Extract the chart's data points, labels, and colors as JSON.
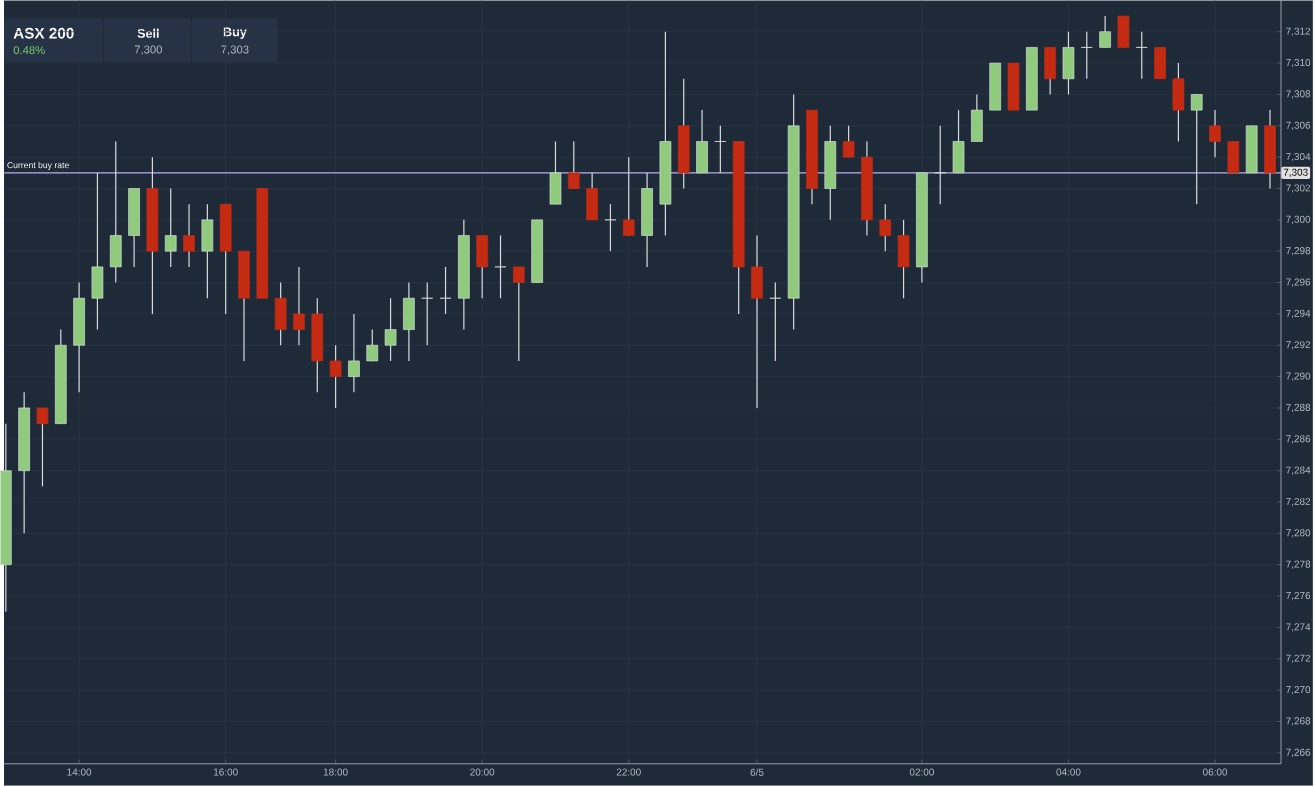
{
  "chart_data": {
    "type": "candlestick",
    "title": "ASX 200",
    "subtitle": "0.48%",
    "annotations": [
      "Sell",
      "7,300",
      "Buy",
      "7,303",
      {
        "text": "7,303",
        "y": 7303
      }
    ],
    "categories": [
      null,
      null,
      null,
      null,
      "14:00",
      null,
      null,
      null,
      null,
      null,
      null,
      null,
      "16:00",
      null,
      null,
      null,
      null,
      null,
      "18:00",
      null,
      null,
      null,
      null,
      null,
      null,
      null,
      "20:00",
      null,
      null,
      null,
      null,
      null,
      null,
      null,
      "22:00",
      null,
      null,
      null,
      null,
      null,
      null,
      "6/5",
      null,
      null,
      null,
      null,
      null,
      null,
      null,
      null,
      "02:00",
      null,
      null,
      null,
      null,
      null,
      null,
      null,
      "04:00",
      null,
      null,
      null,
      null,
      null,
      null,
      null,
      "06:00",
      null,
      null,
      null
    ],
    "ohlc": [
      [
        7278,
        7287,
        7275,
        7284
      ],
      [
        7284,
        7289,
        7280,
        7288
      ],
      [
        7288,
        7288,
        7283,
        7287
      ],
      [
        7287,
        7293,
        7287,
        7292
      ],
      [
        7292,
        7296,
        7289,
        7295
      ],
      [
        7295,
        7303,
        7293,
        7297
      ],
      [
        7297,
        7305,
        7296,
        7299
      ],
      [
        7299,
        7302,
        7297,
        7302
      ],
      [
        7302,
        7304,
        7294,
        7298
      ],
      [
        7298,
        7302,
        7297,
        7299
      ],
      [
        7299,
        7301,
        7297,
        7298
      ],
      [
        7298,
        7301,
        7295,
        7300
      ],
      [
        7301,
        7301,
        7294,
        7298
      ],
      [
        7298,
        7298,
        7291,
        7295
      ],
      [
        7302,
        7302,
        7295,
        7295
      ],
      [
        7295,
        7296,
        7292,
        7293
      ],
      [
        7294,
        7297,
        7292,
        7293
      ],
      [
        7294,
        7295,
        7289,
        7291
      ],
      [
        7291,
        7292,
        7288,
        7290
      ],
      [
        7290,
        7294,
        7289,
        7291
      ],
      [
        7291,
        7293,
        7291,
        7292
      ],
      [
        7292,
        7295,
        7291,
        7293
      ],
      [
        7293,
        7296,
        7291,
        7295
      ],
      [
        7295,
        7296,
        7292,
        7295
      ],
      [
        7295,
        7297,
        7294,
        7295
      ],
      [
        7295,
        7300,
        7293,
        7299
      ],
      [
        7299,
        7299,
        7295,
        7297
      ],
      [
        7297,
        7299,
        7295,
        7297
      ],
      [
        7297,
        7297,
        7291,
        7296
      ],
      [
        7296,
        7300,
        7296,
        7300
      ],
      [
        7301,
        7305,
        7301,
        7303
      ],
      [
        7303,
        7305,
        7302,
        7302
      ],
      [
        7302,
        7303,
        7300,
        7300
      ],
      [
        7300,
        7301,
        7298,
        7300
      ],
      [
        7300,
        7304,
        7299,
        7299
      ],
      [
        7299,
        7303,
        7297,
        7302
      ],
      [
        7301,
        7312,
        7299,
        7305
      ],
      [
        7306,
        7309,
        7302,
        7303
      ],
      [
        7303,
        7307,
        7303,
        7305
      ],
      [
        7305,
        7306,
        7303,
        7305
      ],
      [
        7305,
        7305,
        7294,
        7297
      ],
      [
        7297,
        7299,
        7288,
        7295
      ],
      [
        7295,
        7296,
        7291,
        7295
      ],
      [
        7295,
        7308,
        7293,
        7306
      ],
      [
        7307,
        7307,
        7301,
        7302
      ],
      [
        7302,
        7306,
        7300,
        7305
      ],
      [
        7305,
        7306,
        7304,
        7304
      ],
      [
        7304,
        7305,
        7299,
        7300
      ],
      [
        7300,
        7301,
        7298,
        7299
      ],
      [
        7299,
        7300,
        7295,
        7297
      ],
      [
        7297,
        7303,
        7296,
        7303
      ],
      [
        7303,
        7306,
        7301,
        7303
      ],
      [
        7303,
        7307,
        7303,
        7305
      ],
      [
        7305,
        7308,
        7305,
        7307
      ],
      [
        7307,
        7310,
        7307,
        7310
      ],
      [
        7310,
        7310,
        7307,
        7307
      ],
      [
        7307,
        7311,
        7307,
        7311
      ],
      [
        7311,
        7311,
        7308,
        7309
      ],
      [
        7309,
        7312,
        7308,
        7311
      ],
      [
        7311,
        7312,
        7309,
        7311
      ],
      [
        7311,
        7313,
        7311,
        7312
      ],
      [
        7313,
        7313,
        7311,
        7311
      ],
      [
        7311,
        7312,
        7309,
        7311
      ],
      [
        7311,
        7311,
        7309,
        7309
      ],
      [
        7309,
        7310,
        7305,
        7307
      ],
      [
        7307,
        7308,
        7301,
        7308
      ],
      [
        7306,
        7307,
        7304,
        7305
      ],
      [
        7305,
        7305,
        7303,
        7303
      ],
      [
        7303,
        7306,
        7303,
        7306
      ],
      [
        7306,
        7307,
        7302,
        7303
      ]
    ],
    "colors": [
      "#8fca7d",
      "#8fca7d",
      "#c42b12",
      "#8fca7d",
      "#8fca7d",
      "#8fca7d",
      "#8fca7d",
      "#8fca7d",
      "#c42b12",
      "#8fca7d",
      "#c42b12",
      "#8fca7d",
      "#c42b12",
      "#c42b12",
      "#c42b12",
      "#c42b12",
      "#c42b12",
      "#c42b12",
      "#c42b12",
      "#8fca7d",
      "#8fca7d",
      "#8fca7d",
      "#8fca7d",
      "#e0e0e0",
      "#e0e0e0",
      "#8fca7d",
      "#c42b12",
      "#e0e0e0",
      "#c42b12",
      "#8fca7d",
      "#8fca7d",
      "#c42b12",
      "#c42b12",
      "#e0e0e0",
      "#c42b12",
      "#8fca7d",
      "#8fca7d",
      "#c42b12",
      "#8fca7d",
      "#e0e0e0",
      "#c42b12",
      "#c42b12",
      "#e0e0e0",
      "#8fca7d",
      "#c42b12",
      "#8fca7d",
      "#c42b12",
      "#c42b12",
      "#c42b12",
      "#c42b12",
      "#8fca7d",
      "#e0e0e0",
      "#8fca7d",
      "#8fca7d",
      "#8fca7d",
      "#c42b12",
      "#8fca7d",
      "#c42b12",
      "#8fca7d",
      "#e0e0e0",
      "#8fca7d",
      "#c42b12",
      "#e0e0e0",
      "#c42b12",
      "#c42b12",
      "#8fca7d",
      "#c42b12",
      "#c42b12",
      "#8fca7d",
      "#c42b12"
    ],
    "ylim": [
      7265.3,
      7314
    ],
    "yticks": [
      {
        "value": 7266,
        "label": "7,266"
      },
      {
        "value": 7268,
        "label": "7,268"
      },
      {
        "value": 7270,
        "label": "7,270"
      },
      {
        "value": 7272,
        "label": "7,272"
      },
      {
        "value": 7274,
        "label": "7,274"
      },
      {
        "value": 7276,
        "label": "7,276"
      },
      {
        "value": 7278,
        "label": "7,278"
      },
      {
        "value": 7280,
        "label": "7,280"
      },
      {
        "value": 7282,
        "label": "7,282"
      },
      {
        "value": 7284,
        "label": "7,284"
      },
      {
        "value": 7286,
        "label": "7,286"
      },
      {
        "value": 7288,
        "label": "7,288"
      },
      {
        "value": 7290,
        "label": "7,290"
      },
      {
        "value": 7292,
        "label": "7,292"
      },
      {
        "value": 7294,
        "label": "7,294"
      },
      {
        "value": 7296,
        "label": "7,296"
      },
      {
        "value": 7298,
        "label": "7,298"
      },
      {
        "value": 7300,
        "label": "7,300"
      },
      {
        "value": 7302,
        "label": "7,302"
      },
      {
        "value": 7304,
        "label": "7,304"
      },
      {
        "value": 7306,
        "label": "7,306"
      },
      {
        "value": 7308,
        "label": "7,308"
      },
      {
        "value": 7310,
        "label": "7,310"
      },
      {
        "value": 7312,
        "label": "7,312"
      }
    ],
    "ref_lines": [
      {
        "axis": "y",
        "value": 7303,
        "label": "Current buy rate",
        "color": "#b9acec"
      }
    ],
    "grid": true
  }
}
